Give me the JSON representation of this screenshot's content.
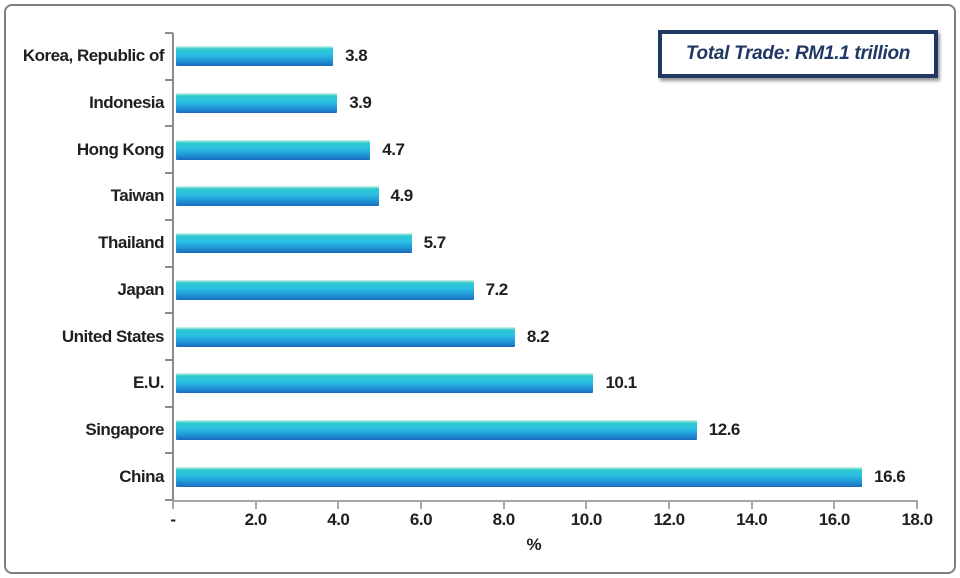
{
  "chart_data": {
    "type": "bar",
    "orientation": "horizontal",
    "categories": [
      "Korea, Republic of",
      "Indonesia",
      "Hong Kong",
      "Taiwan",
      "Thailand",
      "Japan",
      "United States",
      "E.U.",
      "Singapore",
      "China"
    ],
    "values": [
      3.8,
      3.9,
      4.7,
      4.9,
      5.7,
      7.2,
      8.2,
      10.1,
      12.6,
      16.6
    ],
    "value_labels": [
      "3.8",
      "3.9",
      "4.7",
      "4.9",
      "5.7",
      "7.2",
      "8.2",
      "10.1",
      "12.6",
      "16.6"
    ],
    "title": "",
    "xlabel": "%",
    "ylabel": "",
    "xlim": [
      0,
      18
    ],
    "x_tick_labels": [
      "-",
      "2.0",
      "4.0",
      "6.0",
      "8.0",
      "10.0",
      "12.0",
      "14.0",
      "16.0",
      "18.0"
    ],
    "grid": false,
    "legend": "none",
    "annotation": "Total Trade: RM1.1 trillion",
    "bar_gradient": [
      "#d9f6ea",
      "#2ec8cb",
      "#2bc2e3",
      "#229edb",
      "#1a6cbe"
    ]
  },
  "annotation_box": {
    "text": "Total Trade: RM1.1 trillion",
    "border_color": "#1f3864",
    "text_color": "#1f3864"
  },
  "frame": {
    "border_color": "#7f7f7f",
    "background": "#ffffff"
  }
}
